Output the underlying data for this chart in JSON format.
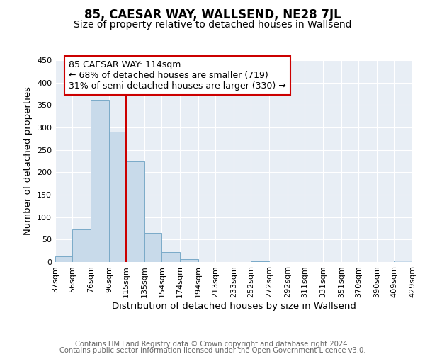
{
  "title": "85, CAESAR WAY, WALLSEND, NE28 7JL",
  "subtitle": "Size of property relative to detached houses in Wallsend",
  "xlabel": "Distribution of detached houses by size in Wallsend",
  "ylabel": "Number of detached properties",
  "bar_edges": [
    37,
    56,
    76,
    96,
    115,
    135,
    154,
    174,
    194,
    213,
    233,
    252,
    272,
    292,
    311,
    331,
    351,
    370,
    390,
    409,
    429
  ],
  "bar_heights": [
    13,
    72,
    362,
    290,
    225,
    65,
    22,
    6,
    0,
    0,
    0,
    2,
    0,
    0,
    0,
    0,
    0,
    0,
    0,
    3
  ],
  "bar_color": "#c8daea",
  "bar_edge_color": "#7aaac8",
  "vline_x": 115,
  "vline_color": "#cc0000",
  "annotation_text": "85 CAESAR WAY: 114sqm\n← 68% of detached houses are smaller (719)\n31% of semi-detached houses are larger (330) →",
  "annotation_box_facecolor": "#ffffff",
  "annotation_box_edgecolor": "#cc0000",
  "ylim": [
    0,
    450
  ],
  "yticks": [
    0,
    50,
    100,
    150,
    200,
    250,
    300,
    350,
    400,
    450
  ],
  "footer_line1": "Contains HM Land Registry data © Crown copyright and database right 2024.",
  "footer_line2": "Contains public sector information licensed under the Open Government Licence v3.0.",
  "bg_color": "#ffffff",
  "plot_bg_color": "#e8eef5",
  "grid_color": "#ffffff",
  "title_fontsize": 12,
  "subtitle_fontsize": 10,
  "axis_label_fontsize": 9.5,
  "tick_fontsize": 8,
  "annotation_fontsize": 9,
  "footer_fontsize": 7.2
}
